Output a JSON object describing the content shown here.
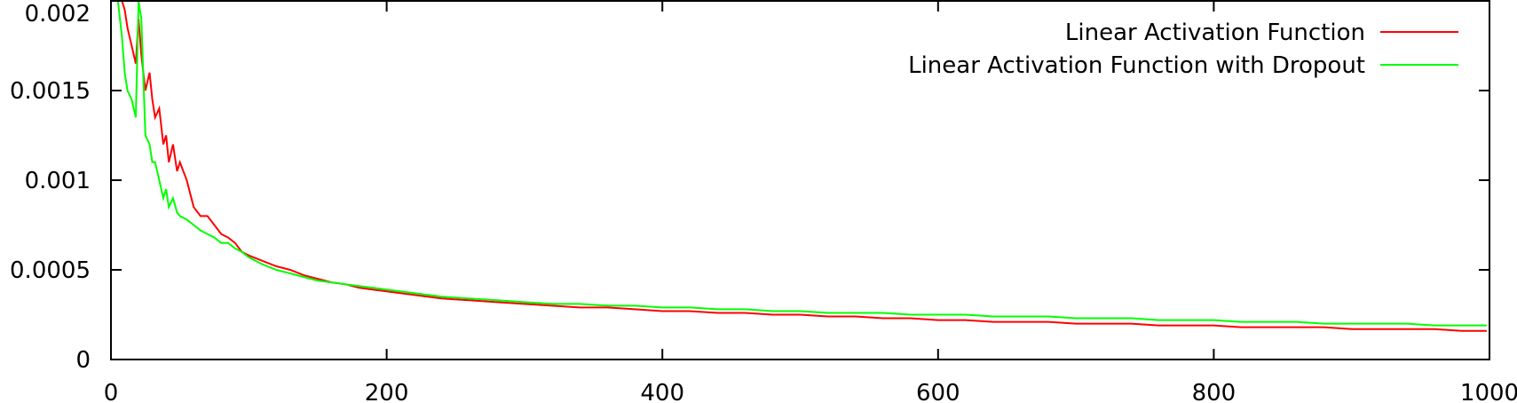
{
  "chart_data": {
    "type": "line",
    "title": "",
    "xlabel": "",
    "ylabel": "",
    "xlim": [
      0,
      1000
    ],
    "ylim": [
      0,
      0.002
    ],
    "xticks": [
      0,
      200,
      400,
      600,
      800,
      1000
    ],
    "xtick_labels": [
      "0",
      "200",
      "400",
      "600",
      "800",
      "1000"
    ],
    "yticks": [
      0,
      0.0005,
      0.001,
      0.0015,
      0.002
    ],
    "ytick_labels": [
      "0",
      "0.0005",
      "0.001",
      "0.0015",
      "0.002"
    ],
    "grid": false,
    "legend_position": "top-right",
    "series": [
      {
        "name": "Linear Activation Function",
        "color": "#ff0000",
        "x": [
          2,
          5,
          8,
          10,
          12,
          15,
          18,
          20,
          22,
          25,
          28,
          30,
          32,
          35,
          38,
          40,
          42,
          45,
          48,
          50,
          55,
          60,
          65,
          70,
          75,
          80,
          85,
          90,
          95,
          100,
          110,
          120,
          130,
          140,
          150,
          160,
          170,
          180,
          190,
          200,
          220,
          240,
          260,
          280,
          300,
          320,
          340,
          360,
          380,
          400,
          420,
          440,
          460,
          480,
          500,
          520,
          540,
          560,
          580,
          600,
          620,
          640,
          660,
          680,
          700,
          720,
          740,
          760,
          780,
          800,
          820,
          840,
          860,
          880,
          900,
          920,
          940,
          960,
          980,
          998
        ],
        "y": [
          0.0021,
          0.0021,
          0.0021,
          0.00195,
          0.00185,
          0.00175,
          0.00165,
          0.0019,
          0.0017,
          0.0015,
          0.0016,
          0.00145,
          0.00135,
          0.0014,
          0.0012,
          0.00125,
          0.0011,
          0.0012,
          0.00105,
          0.0011,
          0.001,
          0.00085,
          0.0008,
          0.0008,
          0.00075,
          0.0007,
          0.00068,
          0.00065,
          0.0006,
          0.00058,
          0.00055,
          0.00052,
          0.0005,
          0.00047,
          0.00045,
          0.00043,
          0.00042,
          0.0004,
          0.00039,
          0.00038,
          0.00036,
          0.00034,
          0.00033,
          0.00032,
          0.00031,
          0.0003,
          0.00029,
          0.00029,
          0.00028,
          0.00027,
          0.00027,
          0.00026,
          0.00026,
          0.00025,
          0.00025,
          0.00024,
          0.00024,
          0.00023,
          0.00023,
          0.00022,
          0.00022,
          0.00021,
          0.00021,
          0.00021,
          0.0002,
          0.0002,
          0.0002,
          0.00019,
          0.00019,
          0.00019,
          0.00018,
          0.00018,
          0.00018,
          0.00018,
          0.00017,
          0.00017,
          0.00017,
          0.00017,
          0.00016,
          0.00016
        ]
      },
      {
        "name": "Linear Activation Function with Dropout",
        "color": "#00ff00",
        "x": [
          2,
          5,
          8,
          10,
          12,
          15,
          18,
          20,
          22,
          25,
          28,
          30,
          32,
          35,
          38,
          40,
          42,
          45,
          48,
          50,
          55,
          60,
          65,
          70,
          75,
          80,
          85,
          90,
          95,
          100,
          110,
          120,
          130,
          140,
          150,
          160,
          170,
          180,
          190,
          200,
          220,
          240,
          260,
          280,
          300,
          320,
          340,
          360,
          380,
          400,
          420,
          440,
          460,
          480,
          500,
          520,
          540,
          560,
          580,
          600,
          620,
          640,
          660,
          680,
          700,
          720,
          740,
          760,
          780,
          800,
          820,
          840,
          860,
          880,
          900,
          920,
          940,
          960,
          980,
          998
        ],
        "y": [
          0.0021,
          0.0021,
          0.0018,
          0.0016,
          0.0015,
          0.00145,
          0.00135,
          0.0021,
          0.0019,
          0.00125,
          0.0012,
          0.0011,
          0.0011,
          0.001,
          0.0009,
          0.00095,
          0.00085,
          0.0009,
          0.00082,
          0.0008,
          0.00078,
          0.00075,
          0.00072,
          0.0007,
          0.00068,
          0.00065,
          0.00065,
          0.00062,
          0.0006,
          0.00057,
          0.00053,
          0.0005,
          0.00048,
          0.00046,
          0.00044,
          0.00043,
          0.00042,
          0.00041,
          0.0004,
          0.00039,
          0.00037,
          0.00035,
          0.00034,
          0.00033,
          0.00032,
          0.00031,
          0.00031,
          0.0003,
          0.0003,
          0.00029,
          0.00029,
          0.00028,
          0.00028,
          0.00027,
          0.00027,
          0.00026,
          0.00026,
          0.00026,
          0.00025,
          0.00025,
          0.00025,
          0.00024,
          0.00024,
          0.00024,
          0.00023,
          0.00023,
          0.00023,
          0.00022,
          0.00022,
          0.00022,
          0.00021,
          0.00021,
          0.00021,
          0.0002,
          0.0002,
          0.0002,
          0.0002,
          0.00019,
          0.00019,
          0.00019
        ]
      }
    ]
  }
}
